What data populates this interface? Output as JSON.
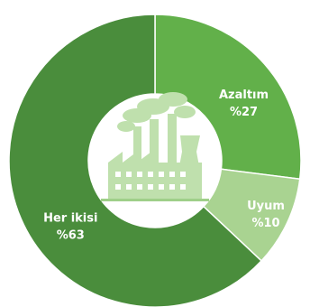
{
  "chart_data": {
    "type": "pie",
    "donut": true,
    "title": "",
    "slices": [
      {
        "label": "Azaltım",
        "value_text": "%27",
        "value": 27,
        "color": "#62b04a"
      },
      {
        "label": "Uyum",
        "value_text": "%10",
        "value": 10,
        "color": "#a9d391"
      },
      {
        "label": "Her ikisi",
        "value_text": "%63",
        "value": 63,
        "color": "#4a8d3c"
      }
    ],
    "center_icon": "factory-smokestacks-icon"
  },
  "colors": {
    "center_bg": "#ffffff",
    "icon": "#bfe0ad",
    "icon_dark": "#9fcf89"
  }
}
